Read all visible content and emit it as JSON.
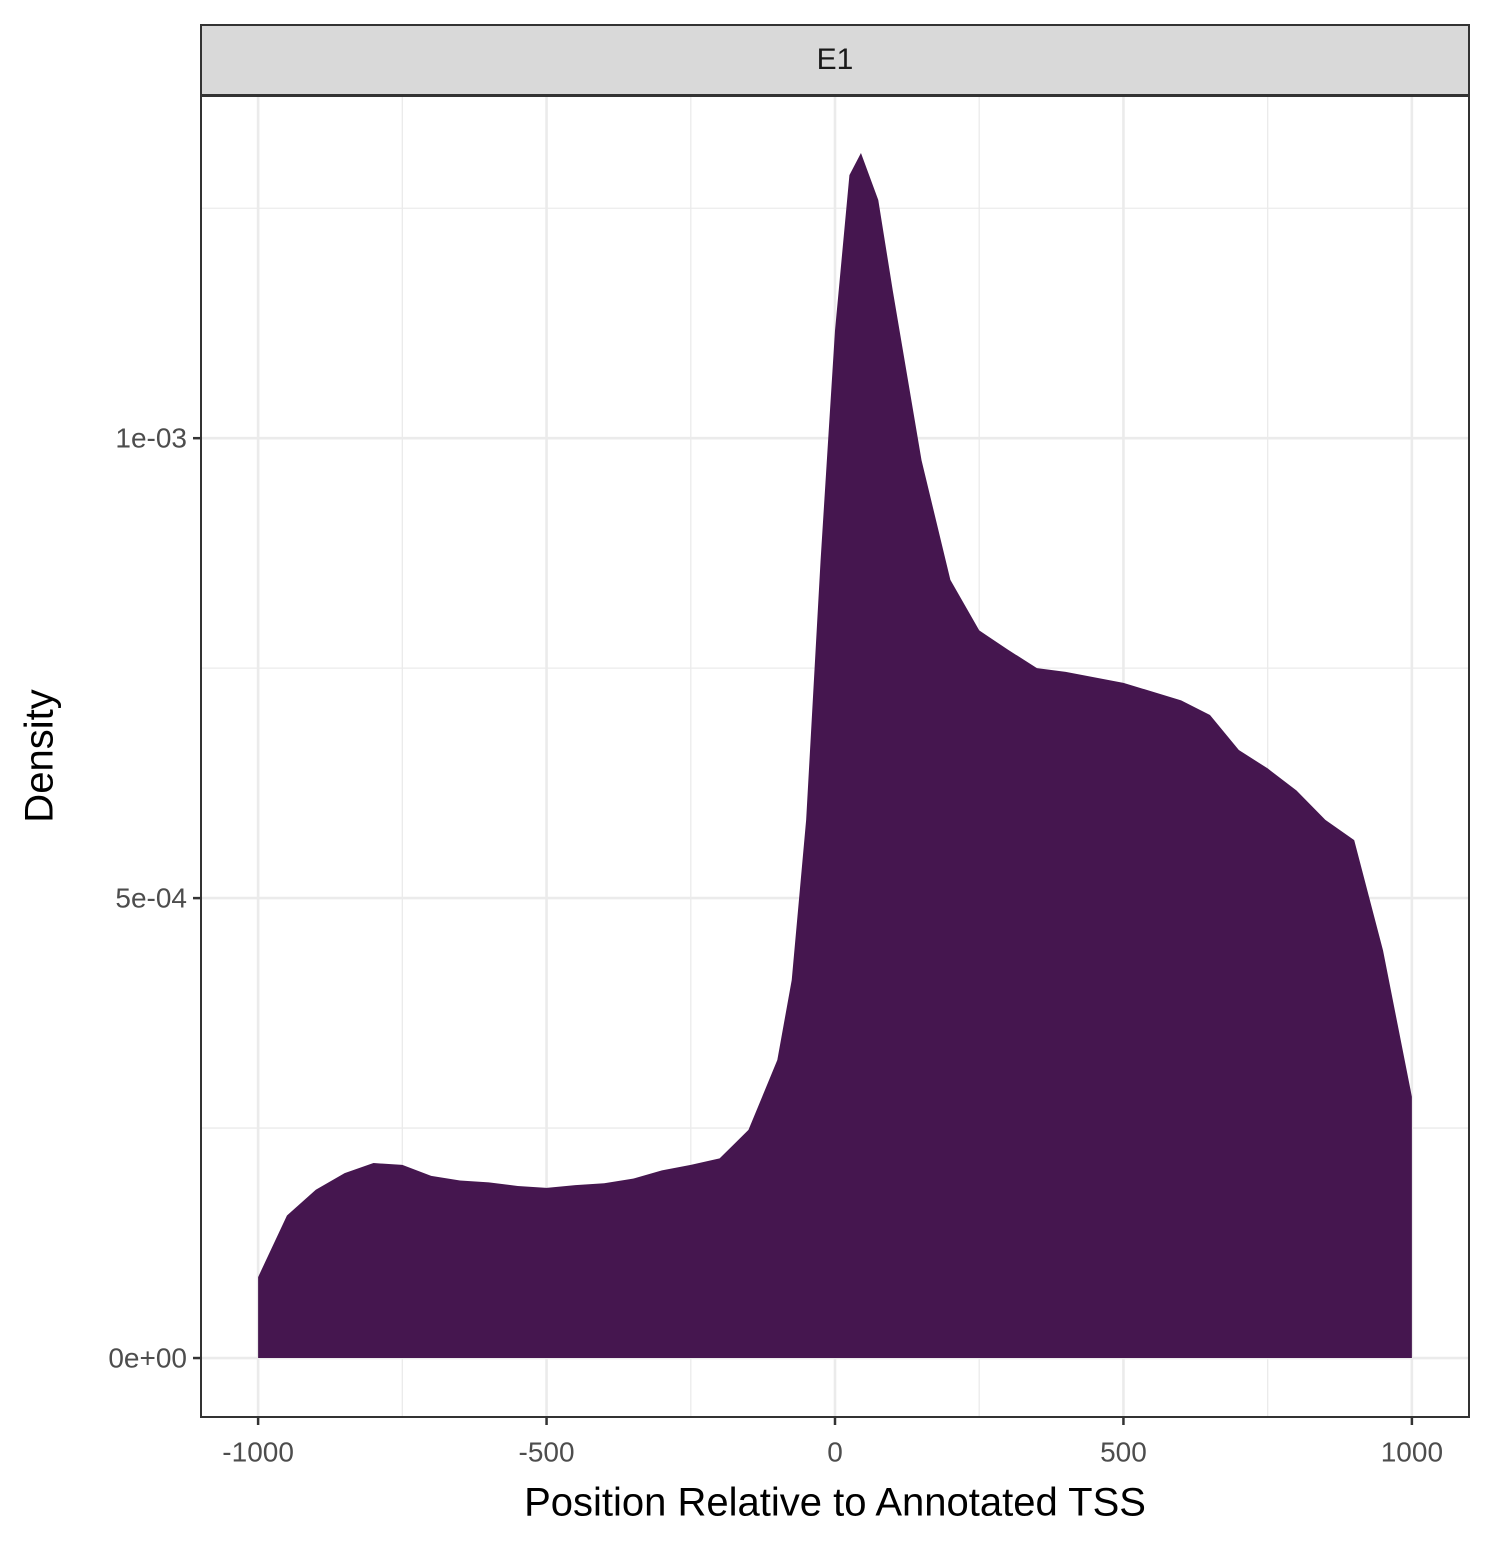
{
  "chart_data": {
    "type": "area",
    "strip": "E1",
    "xlabel": "Position Relative to Annotated TSS",
    "ylabel": "Density",
    "x": [
      -1000,
      -950,
      -900,
      -850,
      -800,
      -750,
      -700,
      -650,
      -600,
      -550,
      -500,
      -450,
      -400,
      -350,
      -300,
      -250,
      -200,
      -150,
      -100,
      -75,
      -50,
      -25,
      0,
      25,
      45,
      75,
      100,
      150,
      200,
      250,
      300,
      350,
      400,
      500,
      600,
      650,
      700,
      750,
      800,
      850,
      900,
      950,
      1000
    ],
    "values": [
      8.8e-05,
      0.000155,
      0.000183,
      0.000201,
      0.000212,
      0.00021,
      0.000198,
      0.000193,
      0.000191,
      0.000187,
      0.000185,
      0.000188,
      0.00019,
      0.000195,
      0.000204,
      0.00021,
      0.000217,
      0.000248,
      0.000324,
      0.000411,
      0.000585,
      0.000867,
      0.001117,
      0.001286,
      0.00131,
      0.001259,
      0.001161,
      0.000976,
      0.000846,
      0.000791,
      0.00077,
      0.00075,
      0.000746,
      0.000734,
      0.000715,
      0.000699,
      0.000661,
      0.000641,
      0.000617,
      0.000585,
      0.000563,
      0.000443,
      0.000284
    ],
    "color": "#45164f",
    "xlim": [
      -1099,
      1099
    ],
    "ylim": [
      -6.41e-05,
      0.001372
    ],
    "xticks": [
      -1000,
      -500,
      0,
      500,
      1000
    ],
    "yticks": [
      {
        "value": 0,
        "label": "0e+00"
      },
      {
        "value": 0.0005,
        "label": "5e-04"
      },
      {
        "value": 0.001,
        "label": "1e-03"
      }
    ],
    "minor_xgrid": [
      -750,
      -250,
      250,
      750
    ],
    "minor_ygrid": [
      0.00025,
      0.00075,
      0.00125
    ],
    "grid": true
  }
}
